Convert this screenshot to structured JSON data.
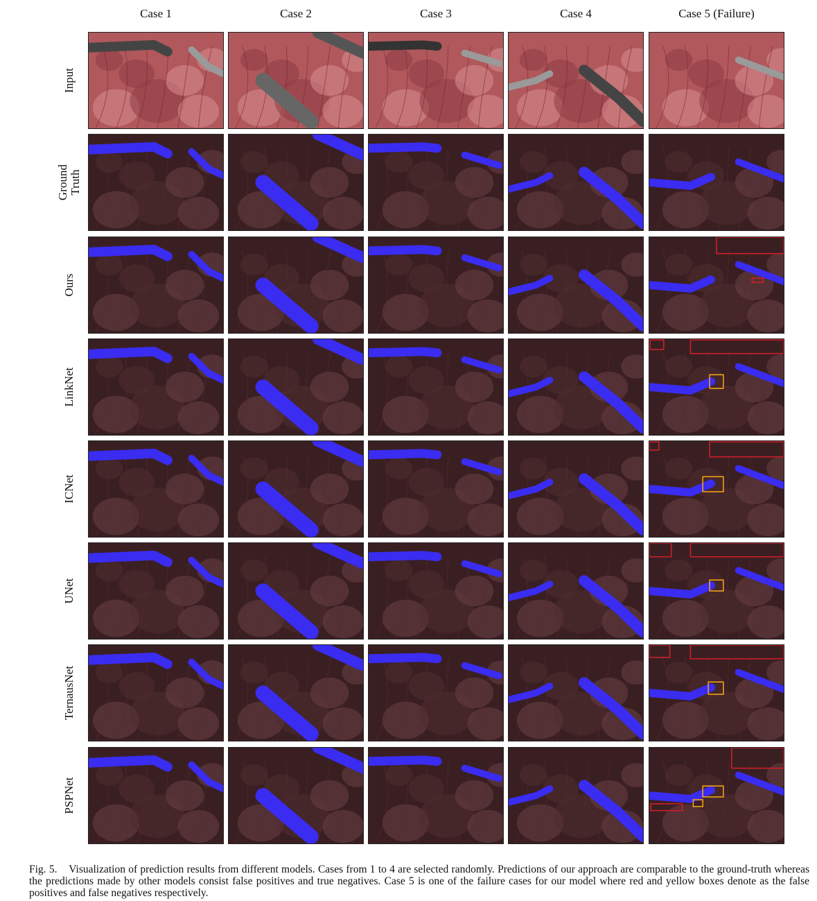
{
  "columns": [
    "Case 1",
    "Case 2",
    "Case 3",
    "Case 4",
    "Case 5 (Failure)"
  ],
  "rows": [
    "Input",
    "Ground\nTruth",
    "Ours",
    "LinkNet",
    "ICNet",
    "UNet",
    "TernausNet",
    "PSPNet"
  ],
  "caption": {
    "label": "Fig. 5.",
    "text": "Visualization of prediction results from different models. Cases from 1 to 4 are selected randomly. Predictions of our approach are comparable to the ground-truth whereas the predictions made by other models consist false positives and true negatives. Case 5 is one of the failure cases for our model where red and yellow boxes denote as the false positives and false negatives respectively."
  },
  "colors": {
    "mask": "#3a2cf0",
    "false_positive_box": "#d0202a",
    "false_negative_box": "#f0a418",
    "tissue_dark": "#3a1f22",
    "tissue_input": "#b0585c"
  }
}
